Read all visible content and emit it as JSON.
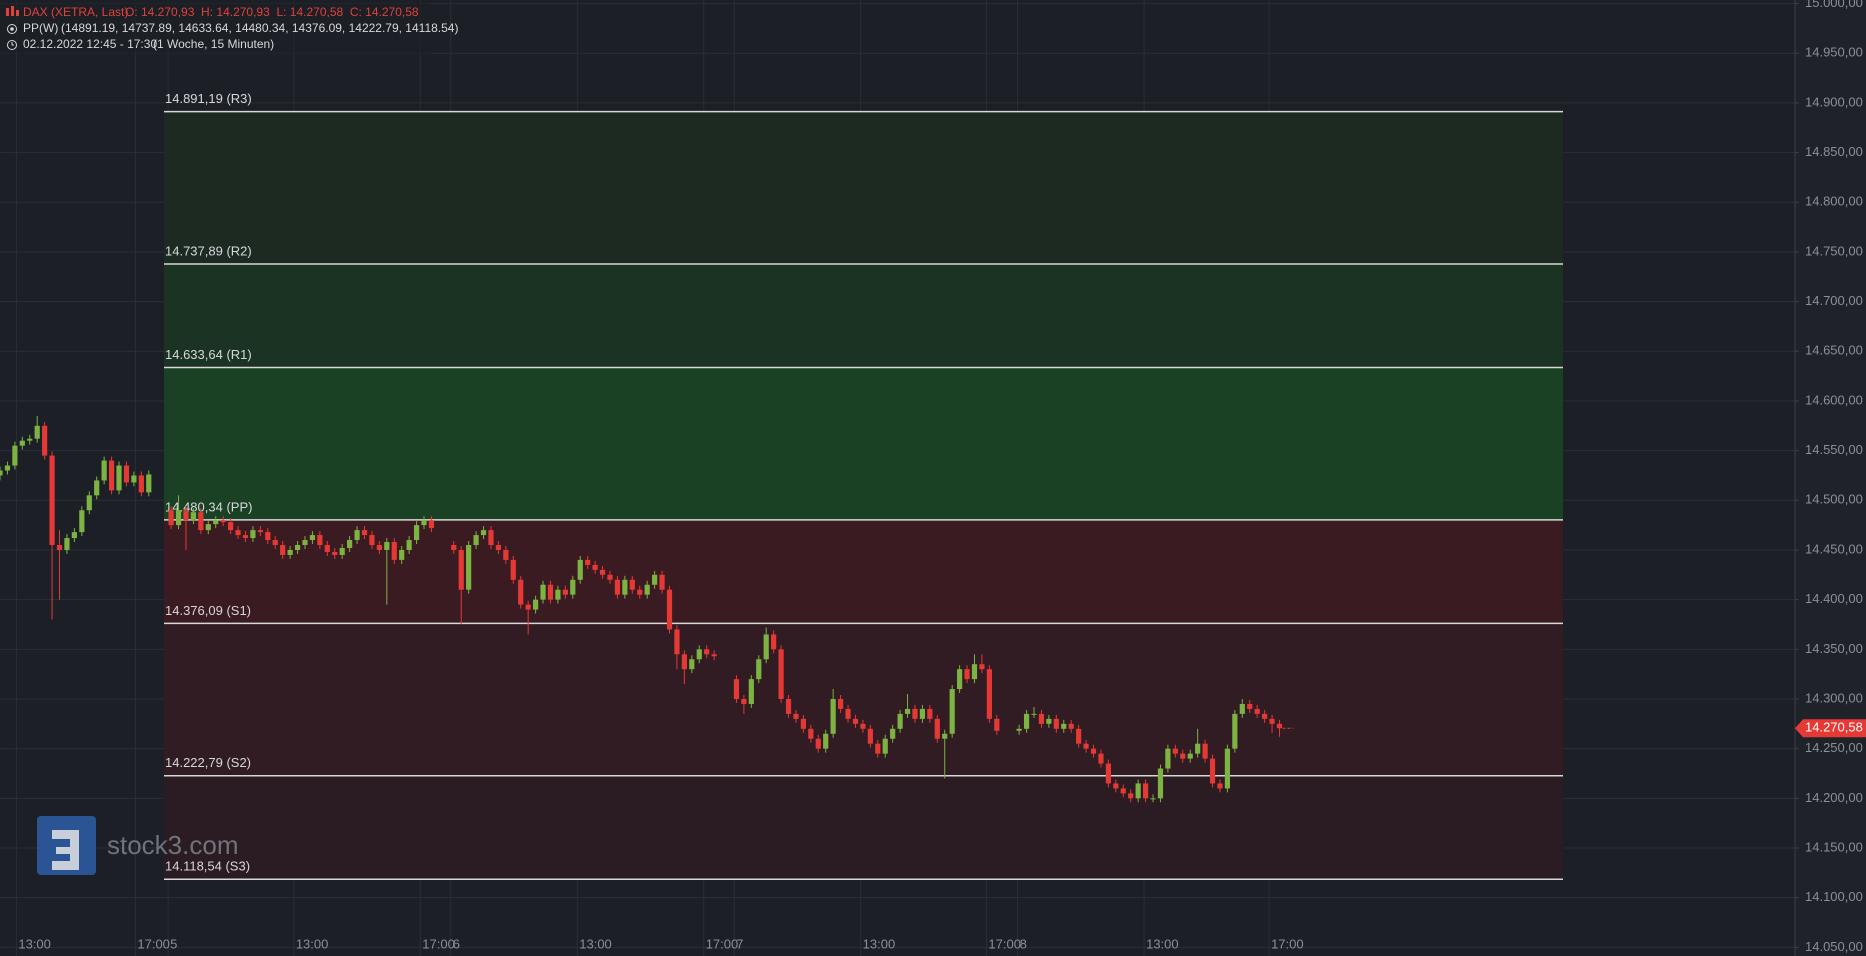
{
  "chart_data": {
    "type": "candlestick",
    "title": "DAX (XETRA, Last)",
    "ohlc_label": "O: 14.270,93  H: 14.270,93  L: 14.270,58  C: 14.270,58",
    "indicator": "PP(W)",
    "indicator_values": "(14891.19, 14737.89, 14633.64, 14480.34, 14376.09, 14222.79, 14118.54)",
    "period": "02.12.2022 12:45 - 17:30",
    "interval": "(1 Woche, 15 Minuten)",
    "watermark": "stock3.com",
    "up_color": "#7cb342",
    "down_color": "#e53935",
    "grid": true,
    "xlim": [
      0,
      241.3
    ],
    "ylim": [
      14041.3,
      15003.6
    ],
    "xticks": [
      {
        "value": 2.2,
        "label": "13:00"
      },
      {
        "value": 18.2,
        "label": "17:00"
      },
      {
        "value": 22.6,
        "label": "5"
      },
      {
        "value": 39.5,
        "label": "13:00"
      },
      {
        "value": 56.5,
        "label": "17:00"
      },
      {
        "value": 60.6,
        "label": "6"
      },
      {
        "value": 77.6,
        "label": "13:00"
      },
      {
        "value": 94.6,
        "label": "17:00"
      },
      {
        "value": 98.7,
        "label": "7"
      },
      {
        "value": 115.7,
        "label": "13:00"
      },
      {
        "value": 132.6,
        "label": "17:00"
      },
      {
        "value": 136.8,
        "label": "8"
      },
      {
        "value": 153.8,
        "label": "13:00"
      },
      {
        "value": 170.6,
        "label": "17:00"
      }
    ],
    "yticks": [
      {
        "value": 14050,
        "label": "14.050,00"
      },
      {
        "value": 14100,
        "label": "14.100,00"
      },
      {
        "value": 14150,
        "label": "14.150,00"
      },
      {
        "value": 14200,
        "label": "14.200,00"
      },
      {
        "value": 14250,
        "label": "14.250,00"
      },
      {
        "value": 14300,
        "label": "14.300,00"
      },
      {
        "value": 14350,
        "label": "14.350,00"
      },
      {
        "value": 14400,
        "label": "14.400,00"
      },
      {
        "value": 14450,
        "label": "14.450,00"
      },
      {
        "value": 14500,
        "label": "14.500,00"
      },
      {
        "value": 14550,
        "label": "14.550,00"
      },
      {
        "value": 14600,
        "label": "14.600,00"
      },
      {
        "value": 14650,
        "label": "14.650,00"
      },
      {
        "value": 14700,
        "label": "14.700,00"
      },
      {
        "value": 14750,
        "label": "14.750,00"
      },
      {
        "value": 14800,
        "label": "14.800,00"
      },
      {
        "value": 14850,
        "label": "14.850,00"
      },
      {
        "value": 14900,
        "label": "14.900,00"
      },
      {
        "value": 14950,
        "label": "14.950,00"
      },
      {
        "value": 15000,
        "label": "15.000,00"
      }
    ],
    "pivots": [
      {
        "value": 14891.19,
        "label": "14.891,19 (R3)",
        "color": "#1d2a22"
      },
      {
        "value": 14737.89,
        "label": "14.737,89 (R2)",
        "color": "#1a3322"
      },
      {
        "value": 14633.64,
        "label": "14.633,64 (R1)",
        "color": "#1a4123"
      },
      {
        "value": 14480.34,
        "label": "14.480,34 (PP)",
        "color": "#3a1b22"
      },
      {
        "value": 14376.09,
        "label": "14.376,09 (S1)",
        "color": "#301c22"
      },
      {
        "value": 14222.79,
        "label": "14.222,79 (S2)",
        "color": "#2a1c22"
      },
      {
        "value": 14118.54,
        "label": "14.118,54 (S3)"
      }
    ],
    "last_price": {
      "value": 14270.58,
      "label": "14.270,58"
    },
    "candles": [
      [
        0,
        14525,
        14534,
        14520,
        14530
      ],
      [
        1,
        14530,
        14539,
        14526,
        14535
      ],
      [
        2,
        14535,
        14559,
        14531,
        14555
      ],
      [
        3,
        14555,
        14564,
        14551,
        14560
      ],
      [
        4,
        14560,
        14566,
        14556,
        14562
      ],
      [
        5,
        14562,
        14585,
        14558,
        14575
      ],
      [
        6,
        14575,
        14579,
        14541,
        14545
      ],
      [
        7,
        14545,
        14549,
        14380,
        14455
      ],
      [
        8,
        14455,
        14470,
        14400,
        14450
      ],
      [
        9,
        14450,
        14466,
        14446,
        14462
      ],
      [
        10,
        14462,
        14472,
        14458,
        14468
      ],
      [
        11,
        14468,
        14494,
        14464,
        14490
      ],
      [
        12,
        14490,
        14509,
        14486,
        14505
      ],
      [
        13,
        14505,
        14524,
        14501,
        14520
      ],
      [
        14,
        14520,
        14544,
        14516,
        14540
      ],
      [
        15,
        14540,
        14544,
        14506,
        14510
      ],
      [
        16,
        14510,
        14539,
        14506,
        14535
      ],
      [
        17,
        14535,
        14539,
        14514,
        14518
      ],
      [
        18,
        14518,
        14529,
        14514,
        14525
      ],
      [
        19,
        14525,
        14529,
        14504,
        14508
      ],
      [
        20,
        14508,
        14530,
        14504,
        14526
      ],
      [
        23,
        14490,
        14494,
        14471,
        14475
      ],
      [
        24,
        14475,
        14505,
        14471,
        14490
      ],
      [
        25,
        14490,
        14494,
        14450,
        14480
      ],
      [
        26,
        14480,
        14492,
        14476,
        14488
      ],
      [
        27,
        14488,
        14492,
        14466,
        14470
      ],
      [
        28,
        14470,
        14480,
        14466,
        14476
      ],
      [
        29,
        14476,
        14484,
        14472,
        14480
      ],
      [
        30,
        14480,
        14484,
        14474,
        14478
      ],
      [
        31,
        14478,
        14482,
        14466,
        14470
      ],
      [
        32,
        14470,
        14474,
        14461,
        14465
      ],
      [
        33,
        14465,
        14469,
        14458,
        14462
      ],
      [
        34,
        14462,
        14474,
        14458,
        14470
      ],
      [
        35,
        14470,
        14474,
        14464,
        14468
      ],
      [
        36,
        14468,
        14472,
        14456,
        14460
      ],
      [
        37,
        14460,
        14464,
        14451,
        14455
      ],
      [
        38,
        14455,
        14459,
        14441,
        14445
      ],
      [
        39,
        14445,
        14454,
        14441,
        14450
      ],
      [
        40,
        14450,
        14459,
        14446,
        14455
      ],
      [
        41,
        14455,
        14464,
        14451,
        14460
      ],
      [
        42,
        14460,
        14469,
        14456,
        14465
      ],
      [
        43,
        14465,
        14469,
        14451,
        14455
      ],
      [
        44,
        14455,
        14459,
        14444,
        14448
      ],
      [
        45,
        14448,
        14452,
        14441,
        14445
      ],
      [
        46,
        14445,
        14456,
        14441,
        14452
      ],
      [
        47,
        14452,
        14464,
        14448,
        14460
      ],
      [
        48,
        14460,
        14474,
        14456,
        14470
      ],
      [
        49,
        14470,
        14474,
        14461,
        14465
      ],
      [
        50,
        14465,
        14469,
        14451,
        14455
      ],
      [
        51,
        14455,
        14459,
        14446,
        14450
      ],
      [
        52,
        14450,
        14462,
        14395,
        14458
      ],
      [
        53,
        14458,
        14462,
        14436,
        14440
      ],
      [
        54,
        14440,
        14454,
        14436,
        14450
      ],
      [
        55,
        14450,
        14464,
        14446,
        14460
      ],
      [
        56,
        14460,
        14479,
        14456,
        14475
      ],
      [
        57,
        14475,
        14484,
        14471,
        14480
      ],
      [
        58,
        14480,
        14484,
        14468,
        14472
      ],
      [
        61,
        14455,
        14459,
        14446,
        14450
      ],
      [
        62,
        14450,
        14454,
        14375,
        14410
      ],
      [
        63,
        14410,
        14459,
        14406,
        14455
      ],
      [
        64,
        14455,
        14469,
        14451,
        14465
      ],
      [
        65,
        14465,
        14474,
        14461,
        14470
      ],
      [
        66,
        14470,
        14474,
        14451,
        14455
      ],
      [
        67,
        14455,
        14459,
        14446,
        14450
      ],
      [
        68,
        14450,
        14454,
        14436,
        14440
      ],
      [
        69,
        14440,
        14444,
        14416,
        14420
      ],
      [
        70,
        14420,
        14424,
        14391,
        14395
      ],
      [
        71,
        14395,
        14399,
        14365,
        14390
      ],
      [
        72,
        14390,
        14404,
        14386,
        14400
      ],
      [
        73,
        14400,
        14419,
        14396,
        14415
      ],
      [
        74,
        14415,
        14419,
        14396,
        14400
      ],
      [
        75,
        14400,
        14414,
        14396,
        14410
      ],
      [
        76,
        14410,
        14414,
        14401,
        14405
      ],
      [
        77,
        14405,
        14424,
        14401,
        14420
      ],
      [
        78,
        14420,
        14444,
        14416,
        14440
      ],
      [
        79,
        14440,
        14444,
        14431,
        14435
      ],
      [
        80,
        14435,
        14439,
        14426,
        14430
      ],
      [
        81,
        14430,
        14434,
        14421,
        14425
      ],
      [
        82,
        14425,
        14429,
        14416,
        14420
      ],
      [
        83,
        14420,
        14424,
        14401,
        14405
      ],
      [
        84,
        14405,
        14424,
        14401,
        14420
      ],
      [
        85,
        14420,
        14424,
        14406,
        14410
      ],
      [
        86,
        14410,
        14414,
        14401,
        14405
      ],
      [
        87,
        14405,
        14419,
        14401,
        14415
      ],
      [
        88,
        14415,
        14429,
        14411,
        14425
      ],
      [
        89,
        14425,
        14429,
        14406,
        14410
      ],
      [
        90,
        14410,
        14414,
        14366,
        14370
      ],
      [
        91,
        14370,
        14374,
        14330,
        14345
      ],
      [
        92,
        14345,
        14349,
        14315,
        14330
      ],
      [
        93,
        14330,
        14344,
        14326,
        14340
      ],
      [
        94,
        14340,
        14354,
        14336,
        14350
      ],
      [
        95,
        14350,
        14354,
        14341,
        14345
      ],
      [
        96,
        14345,
        14349,
        14339,
        14343
      ],
      [
        99,
        14320,
        14324,
        14296,
        14300
      ],
      [
        100,
        14300,
        14304,
        14285,
        14295
      ],
      [
        101,
        14295,
        14324,
        14291,
        14320
      ],
      [
        102,
        14320,
        14344,
        14316,
        14340
      ],
      [
        103,
        14340,
        14372,
        14336,
        14365
      ],
      [
        104,
        14365,
        14369,
        14346,
        14350
      ],
      [
        105,
        14350,
        14354,
        14296,
        14300
      ],
      [
        106,
        14300,
        14304,
        14281,
        14285
      ],
      [
        107,
        14285,
        14289,
        14276,
        14280
      ],
      [
        108,
        14280,
        14284,
        14266,
        14270
      ],
      [
        109,
        14270,
        14274,
        14256,
        14260
      ],
      [
        110,
        14260,
        14264,
        14246,
        14250
      ],
      [
        111,
        14250,
        14269,
        14246,
        14265
      ],
      [
        112,
        14265,
        14310,
        14261,
        14300
      ],
      [
        113,
        14300,
        14304,
        14286,
        14290
      ],
      [
        114,
        14290,
        14294,
        14276,
        14280
      ],
      [
        115,
        14280,
        14284,
        14271,
        14275
      ],
      [
        116,
        14275,
        14279,
        14266,
        14270
      ],
      [
        117,
        14270,
        14274,
        14251,
        14255
      ],
      [
        118,
        14255,
        14259,
        14241,
        14245
      ],
      [
        119,
        14245,
        14264,
        14241,
        14260
      ],
      [
        120,
        14260,
        14274,
        14256,
        14270
      ],
      [
        121,
        14270,
        14289,
        14266,
        14285
      ],
      [
        122,
        14285,
        14305,
        14281,
        14290
      ],
      [
        123,
        14290,
        14294,
        14276,
        14280
      ],
      [
        124,
        14280,
        14294,
        14276,
        14290
      ],
      [
        125,
        14290,
        14294,
        14276,
        14280
      ],
      [
        126,
        14280,
        14284,
        14256,
        14260
      ],
      [
        127,
        14260,
        14269,
        14220,
        14265
      ],
      [
        128,
        14265,
        14314,
        14261,
        14310
      ],
      [
        129,
        14310,
        14334,
        14306,
        14330
      ],
      [
        130,
        14330,
        14334,
        14316,
        14320
      ],
      [
        131,
        14320,
        14345,
        14316,
        14335
      ],
      [
        132,
        14335,
        14345,
        14326,
        14330
      ],
      [
        133,
        14330,
        14334,
        14276,
        14280
      ],
      [
        134,
        14280,
        14284,
        14264,
        14268
      ],
      [
        137,
        14268,
        14274,
        14264,
        14270
      ],
      [
        138,
        14270,
        14289,
        14266,
        14285
      ],
      [
        139,
        14285,
        14292,
        14281,
        14285
      ],
      [
        140,
        14285,
        14289,
        14271,
        14275
      ],
      [
        141,
        14275,
        14284,
        14271,
        14280
      ],
      [
        142,
        14280,
        14284,
        14266,
        14270
      ],
      [
        143,
        14270,
        14279,
        14266,
        14275
      ],
      [
        144,
        14275,
        14279,
        14266,
        14270
      ],
      [
        145,
        14270,
        14274,
        14251,
        14255
      ],
      [
        146,
        14255,
        14259,
        14246,
        14250
      ],
      [
        147,
        14250,
        14254,
        14241,
        14245
      ],
      [
        148,
        14245,
        14249,
        14231,
        14235
      ],
      [
        149,
        14235,
        14239,
        14211,
        14215
      ],
      [
        150,
        14215,
        14219,
        14206,
        14210
      ],
      [
        151,
        14210,
        14214,
        14201,
        14205
      ],
      [
        152,
        14205,
        14209,
        14196,
        14200
      ],
      [
        153,
        14200,
        14219,
        14196,
        14215
      ],
      [
        154,
        14215,
        14219,
        14196,
        14200
      ],
      [
        155,
        14200,
        14204,
        14196,
        14200
      ],
      [
        156,
        14200,
        14234,
        14196,
        14230
      ],
      [
        157,
        14230,
        14254,
        14226,
        14250
      ],
      [
        158,
        14250,
        14254,
        14241,
        14245
      ],
      [
        159,
        14245,
        14249,
        14236,
        14240
      ],
      [
        160,
        14240,
        14249,
        14236,
        14245
      ],
      [
        161,
        14245,
        14270,
        14241,
        14255
      ],
      [
        162,
        14255,
        14259,
        14236,
        14240
      ],
      [
        163,
        14240,
        14244,
        14211,
        14215
      ],
      [
        164,
        14215,
        14219,
        14206,
        14210
      ],
      [
        165,
        14210,
        14254,
        14206,
        14250
      ],
      [
        166,
        14250,
        14289,
        14246,
        14285
      ],
      [
        167,
        14285,
        14300,
        14281,
        14295
      ],
      [
        168,
        14295,
        14299,
        14286,
        14290
      ],
      [
        169,
        14290,
        14294,
        14281,
        14285
      ],
      [
        170,
        14285,
        14289,
        14276,
        14280
      ],
      [
        171,
        14280,
        14284,
        14266,
        14275
      ],
      [
        172,
        14275,
        14279,
        14262,
        14270.58
      ]
    ]
  }
}
